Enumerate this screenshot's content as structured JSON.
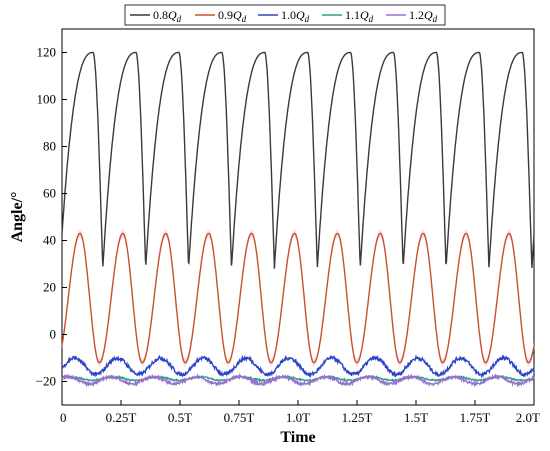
{
  "chart_data": {
    "type": "line",
    "xlabel": "Time",
    "ylabel": "Angle/°",
    "xlim": [
      0,
      2.0
    ],
    "ylim": [
      -30,
      130
    ],
    "x_ticks": [
      {
        "v": 0,
        "label": "0"
      },
      {
        "v": 0.25,
        "label": "0.25T"
      },
      {
        "v": 0.5,
        "label": "0.5T"
      },
      {
        "v": 0.75,
        "label": "0.75T"
      },
      {
        "v": 1.0,
        "label": "1.0T"
      },
      {
        "v": 1.25,
        "label": "1.25T"
      },
      {
        "v": 1.5,
        "label": "1.5T"
      },
      {
        "v": 1.75,
        "label": "1.75T"
      },
      {
        "v": 2.0,
        "label": "2.0T"
      }
    ],
    "y_ticks": [
      {
        "v": -20,
        "label": "−20"
      },
      {
        "v": 0,
        "label": "0"
      },
      {
        "v": 20,
        "label": "20"
      },
      {
        "v": 40,
        "label": "40"
      },
      {
        "v": 60,
        "label": "60"
      },
      {
        "v": 80,
        "label": "80"
      },
      {
        "v": 100,
        "label": "100"
      },
      {
        "v": 120,
        "label": "120"
      }
    ],
    "grid": false,
    "legend_position": "top",
    "cycles": 11,
    "series": [
      {
        "name": "0.8",
        "color": "#3a3a3a",
        "min": 28,
        "max": 120,
        "shape": "sawtooth",
        "noise": 0
      },
      {
        "name": "0.9",
        "color": "#c8502a",
        "min": -12,
        "max": 43,
        "shape": "smooth",
        "noise": 0,
        "band": "#f7c9d6"
      },
      {
        "name": "1.0",
        "color": "#2c45c8",
        "min": -17,
        "max": -10,
        "shape": "wavy",
        "noise": 0.8
      },
      {
        "name": "1.1",
        "color": "#2e9e86",
        "min": -19.5,
        "max": -18,
        "shape": "wavy",
        "noise": 0.3
      },
      {
        "name": "1.2",
        "color": "#9b6fd0",
        "min": -21,
        "max": -18,
        "shape": "wavy",
        "noise": 0.6
      }
    ],
    "legend_suffix": "Q",
    "legend_subscript": "d"
  }
}
